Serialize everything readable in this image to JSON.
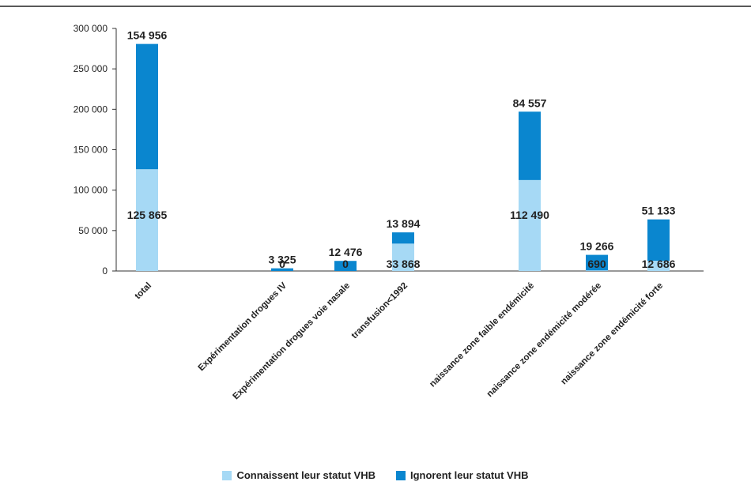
{
  "chart_data": {
    "type": "bar",
    "stacked": true,
    "categories": [
      "total",
      "Expérimentation drogues IV",
      "Expérimentation drogues voie nasale",
      "transfusion<1992",
      "naissance zone faible endémicité",
      "naissance zone endémicité modérée",
      "naissance zone endémicité forte"
    ],
    "y_ticks": [
      "0",
      "50 000",
      "100 000",
      "150 000",
      "200 000",
      "250 000",
      "300 000"
    ],
    "ylim": [
      0,
      300000
    ],
    "grid": false,
    "legend_position": "bottom-center",
    "series": [
      {
        "name": "Connaissent leur statut VHB",
        "color": "#a6d9f5",
        "values": [
          125865,
          0,
          0,
          33868,
          112490,
          690,
          12686
        ],
        "labels": [
          "125 865",
          "0",
          "0",
          "33 868",
          "112 490",
          "690",
          "12 686"
        ]
      },
      {
        "name": "Ignorent leur statut VHB",
        "color": "#0a86cf",
        "values": [
          154956,
          3325,
          12476,
          13894,
          84557,
          19266,
          51133
        ],
        "labels": [
          "154 956",
          "3 325",
          "12 476",
          "13 894",
          "84 557",
          "19 266",
          "51 133"
        ]
      }
    ]
  }
}
